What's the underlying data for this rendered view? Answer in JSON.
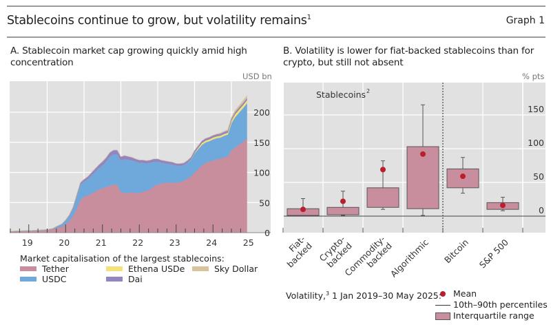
{
  "header": {
    "title": "Stablecoins continue to grow, but volatility remains",
    "title_footnote": "1",
    "graph_label": "Graph 1"
  },
  "colors": {
    "tether": "#c98e9d",
    "usdc": "#6fa9dc",
    "ethena": "#f3e27a",
    "dai": "#9485c0",
    "sky": "#d8c49a",
    "plot_bg": "#e1e1e1",
    "mean_dot": "#b82030",
    "box_fill": "#c98e9d"
  },
  "chart_data": [
    {
      "id": "panel-a",
      "type": "area",
      "stacked": true,
      "title": "A. Stablecoin market cap growing quickly amid high concentration",
      "unit": "USD bn",
      "ylim": [
        0,
        230
      ],
      "yticks": [
        0,
        50,
        100,
        150,
        200
      ],
      "xticks": [
        "19",
        "20",
        "21",
        "22",
        "23",
        "24",
        "25"
      ],
      "xlim": [
        2019.0,
        2025.42
      ],
      "grid": true,
      "legend_title": "Market capitalisation of the largest stablecoins:",
      "legend_position": "bottom",
      "x": [
        2019.0,
        2019.25,
        2019.5,
        2019.75,
        2020.0,
        2020.15,
        2020.25,
        2020.4,
        2020.5,
        2020.6,
        2020.7,
        2020.8,
        2020.9,
        2021.0,
        2021.1,
        2021.2,
        2021.3,
        2021.4,
        2021.5,
        2021.6,
        2021.7,
        2021.8,
        2021.9,
        2022.0,
        2022.1,
        2022.2,
        2022.3,
        2022.4,
        2022.5,
        2022.6,
        2022.7,
        2022.8,
        2022.9,
        2023.0,
        2023.1,
        2023.2,
        2023.3,
        2023.4,
        2023.5,
        2023.6,
        2023.7,
        2023.8,
        2023.9,
        2024.0,
        2024.1,
        2024.2,
        2024.3,
        2024.4,
        2024.5,
        2024.6,
        2024.7,
        2024.8,
        2024.9,
        2025.0,
        2025.1,
        2025.2,
        2025.3,
        2025.42
      ],
      "series": [
        {
          "name": "Tether",
          "values": [
            2,
            2.5,
            3,
            3.5,
            4.5,
            6,
            8,
            10,
            14,
            20,
            28,
            40,
            55,
            60,
            62,
            65,
            68,
            72,
            74,
            76,
            78,
            80,
            80,
            68,
            66,
            66,
            67,
            66,
            66,
            68,
            70,
            72,
            78,
            80,
            82,
            83,
            83,
            83,
            83,
            84,
            86,
            90,
            94,
            100,
            106,
            112,
            116,
            118,
            120,
            122,
            123,
            125,
            127,
            137,
            142,
            146,
            150,
            157
          ]
        },
        {
          "name": "USDC",
          "values": [
            0.4,
            0.5,
            0.5,
            0.6,
            0.7,
            1,
            2,
            4,
            6,
            8,
            12,
            20,
            25,
            25,
            27,
            30,
            33,
            35,
            38,
            42,
            48,
            50,
            50,
            52,
            56,
            55,
            53,
            52,
            50,
            48,
            45,
            44,
            40,
            38,
            34,
            32,
            31,
            30,
            28,
            27,
            26,
            26,
            27,
            32,
            33,
            34,
            34,
            34,
            35,
            35,
            35,
            36,
            36,
            45,
            50,
            53,
            56,
            58
          ]
        },
        {
          "name": "Ethena USDe",
          "values": [
            0,
            0,
            0,
            0,
            0,
            0,
            0,
            0,
            0,
            0,
            0,
            0,
            0,
            0,
            0,
            0,
            0,
            0,
            0,
            0,
            0,
            0,
            0,
            0,
            0,
            0,
            0,
            0,
            0,
            0,
            0,
            0,
            0,
            0,
            0,
            0,
            0,
            0,
            0,
            0,
            0,
            0,
            0.5,
            1,
            2,
            3,
            3,
            3,
            3,
            3,
            3,
            3,
            3,
            4,
            5,
            5,
            5,
            5
          ]
        },
        {
          "name": "Dai",
          "values": [
            0,
            0,
            0,
            0,
            0,
            0,
            0.3,
            0.5,
            1,
            1.5,
            2,
            2.5,
            3,
            3.5,
            4,
            4.5,
            5,
            5.5,
            6,
            6.5,
            7,
            7,
            7,
            6,
            6,
            5.5,
            5,
            4.5,
            4.5,
            4.5,
            4.5,
            4.5,
            4.5,
            4.5,
            4.3,
            4.2,
            4,
            4,
            3.8,
            3.6,
            3.5,
            3.5,
            3.5,
            3.5,
            3.5,
            3.5,
            3.5,
            3.5,
            3.5,
            3.5,
            3.5,
            3.5,
            3.5,
            3.5,
            3.5,
            3.5,
            3.5,
            3.5
          ]
        },
        {
          "name": "Sky Dollar",
          "values": [
            0,
            0,
            0,
            0,
            0,
            0,
            0,
            0,
            0,
            0,
            0,
            0,
            0,
            0,
            0,
            0,
            0,
            0,
            0,
            0,
            0,
            0,
            0,
            0,
            0,
            0,
            0,
            0,
            0,
            0,
            0,
            0,
            0,
            0,
            0,
            0,
            0,
            0,
            0,
            0,
            0,
            0,
            0,
            0,
            0,
            0,
            0,
            0,
            0,
            0.5,
            1,
            1,
            1.5,
            2,
            2.5,
            3,
            3.5,
            4
          ]
        }
      ]
    },
    {
      "id": "panel-b",
      "type": "box",
      "title": "B. Volatility is lower for fiat-backed stablecoins than for crypto, but still not absent",
      "unit": "% pts",
      "ylim": [
        -25,
        180
      ],
      "yticks": [
        0,
        50,
        100,
        150
      ],
      "grid": true,
      "group_label": "Stablecoins",
      "group_label_footnote": "2",
      "group_size": 4,
      "categories": [
        "Fiat-\nbacked",
        "Crypto-\nbacked",
        "Commodity-\nbacked",
        "Algorithmic",
        "Bitcoin",
        "S&P 500"
      ],
      "boxes": [
        {
          "name": "Fiat-backed",
          "p10": 1,
          "q1": 1,
          "q3": 11,
          "p90": 26,
          "mean": 10
        },
        {
          "name": "Crypto-backed",
          "p10": 1,
          "q1": 2,
          "q3": 13,
          "p90": 37,
          "mean": 22
        },
        {
          "name": "Commodity-backed",
          "p10": 10,
          "q1": 13,
          "q3": 42,
          "p90": 82,
          "mean": 69
        },
        {
          "name": "Algorithmic",
          "p10": 1,
          "q1": 11,
          "q3": 103,
          "p90": 165,
          "mean": 92
        },
        {
          "name": "Bitcoin",
          "p10": 34,
          "q1": 42,
          "q3": 70,
          "p90": 87,
          "mean": 59
        },
        {
          "name": "S&P 500",
          "p10": 8,
          "q1": 10,
          "q3": 20,
          "p90": 28,
          "mean": 16
        }
      ],
      "legend": {
        "prefix": "Volatility,",
        "prefix_footnote": "3",
        "period": " 1 Jan 2019–30 May 2025:",
        "entries": [
          "Mean",
          "10th–90th percentiles",
          "Interquartile range"
        ]
      }
    }
  ]
}
